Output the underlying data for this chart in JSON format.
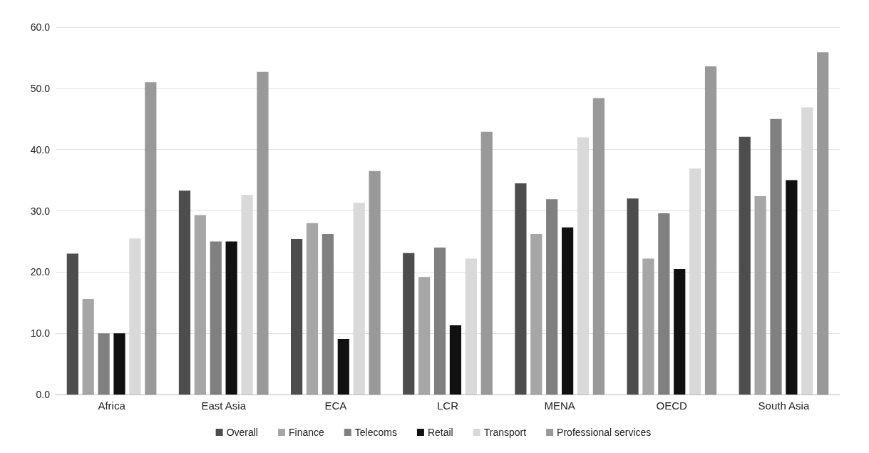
{
  "chart_data": {
    "type": "bar",
    "categories": [
      "Africa",
      "East Asia",
      "ECA",
      "LCR",
      "MENA",
      "OECD",
      "South Asia"
    ],
    "series": [
      {
        "name": "Overall",
        "color": "#4d4d4d",
        "values": [
          23,
          33.3,
          25.4,
          23.1,
          34.5,
          32,
          42.1
        ]
      },
      {
        "name": "Finance",
        "color": "#a6a6a6",
        "values": [
          15.6,
          29.3,
          28,
          19.2,
          26.2,
          22.2,
          32.4
        ]
      },
      {
        "name": "Telecoms",
        "color": "#808080",
        "values": [
          10,
          25,
          26.2,
          24,
          31.9,
          29.6,
          45
        ]
      },
      {
        "name": "Retail",
        "color": "#111111",
        "values": [
          10,
          25,
          9.1,
          11.3,
          27.3,
          20.5,
          35
        ]
      },
      {
        "name": "Transport",
        "color": "#d9d9d9",
        "values": [
          25.5,
          32.6,
          31.3,
          22.2,
          42,
          36.9,
          46.9
        ]
      },
      {
        "name": "Professional services",
        "color": "#999999",
        "values": [
          51,
          52.7,
          36.5,
          42.9,
          48.4,
          53.6,
          55.9
        ]
      }
    ],
    "ylim": [
      0,
      60
    ],
    "yticks": [
      {
        "value": 0,
        "label": "0.0"
      },
      {
        "value": 10,
        "label": "10.0"
      },
      {
        "value": 20,
        "label": "20.0"
      },
      {
        "value": 30,
        "label": "30.0"
      },
      {
        "value": 40,
        "label": "40.0"
      },
      {
        "value": 50,
        "label": "50.0"
      },
      {
        "value": 60,
        "label": "60.0"
      }
    ],
    "grid": "y",
    "legend": "bottom"
  }
}
